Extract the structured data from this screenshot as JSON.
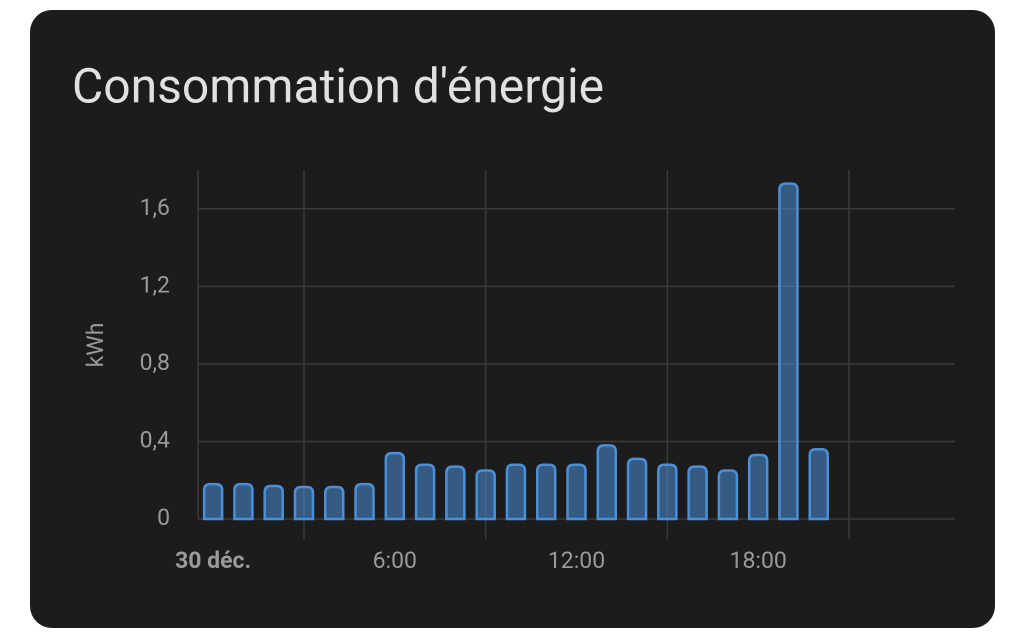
{
  "chart_data": {
    "type": "bar",
    "title": "Consommation d'énergie",
    "y_label": "kWh",
    "x": [
      0,
      1,
      2,
      3,
      4,
      5,
      6,
      7,
      8,
      9,
      10,
      11,
      12,
      13,
      14,
      15,
      16,
      17,
      18,
      19,
      20
    ],
    "values": [
      0.18,
      0.18,
      0.17,
      0.165,
      0.165,
      0.18,
      0.34,
      0.28,
      0.27,
      0.25,
      0.28,
      0.28,
      0.28,
      0.38,
      0.31,
      0.28,
      0.27,
      0.25,
      0.33,
      1.73,
      0.36
    ],
    "color": "#4a90d9",
    "xlim": [
      -0.5,
      24.5
    ],
    "xticks": [
      {
        "value": 0,
        "label": "30 déc."
      },
      {
        "value": 6,
        "label": "6:00"
      },
      {
        "value": 12,
        "label": "12:00"
      },
      {
        "value": 18,
        "label": "18:00"
      }
    ],
    "ylim": [
      0,
      1.8
    ],
    "yticks": [
      0,
      {
        "value": 0.4,
        "label": "0,4"
      },
      {
        "value": 0.8,
        "label": "0,8"
      },
      {
        "value": 1.2,
        "label": "1,2"
      },
      {
        "value": 1.6,
        "label": "1,6"
      }
    ],
    "grid": true
  }
}
